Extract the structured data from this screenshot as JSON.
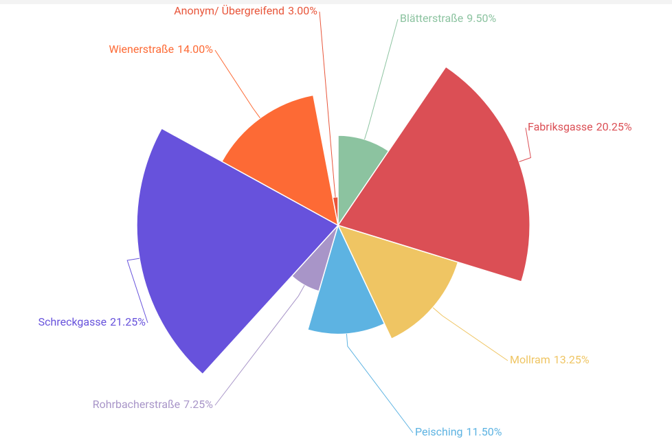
{
  "chart_data": {
    "type": "rose",
    "categories": [
      "Blätterstraße",
      "Fabriksgasse",
      "Mollram",
      "Peisching",
      "Rohrbacherstraße",
      "Schreckgasse",
      "Wienerstraße",
      "Anonym/ Übergreifend"
    ],
    "values": [
      9.5,
      20.25,
      13.25,
      11.5,
      7.25,
      21.25,
      14,
      3
    ],
    "value_labels": [
      "9.50%",
      "20.25%",
      "13.25%",
      "11.50%",
      "7.25%",
      "21.25%",
      "14.00%",
      "3.00%"
    ],
    "colors": [
      "#8cc3a0",
      "#db4f55",
      "#efc563",
      "#5db3e2",
      "#a895c8",
      "#6752dc",
      "#fd6a35",
      "#e8553a"
    ]
  }
}
